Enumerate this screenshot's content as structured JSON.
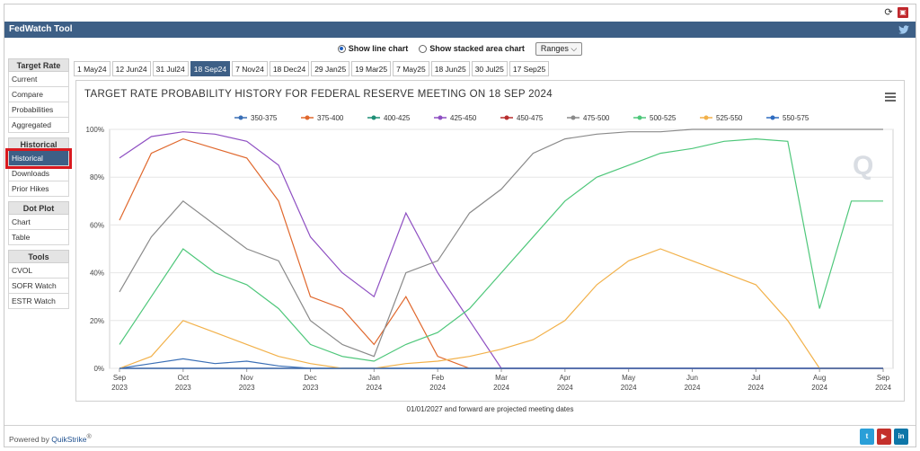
{
  "header": {
    "title": "FedWatch Tool"
  },
  "options": {
    "line_chart": "Show line chart",
    "stacked_chart": "Show stacked area chart",
    "ranges": "Ranges"
  },
  "sidebar": {
    "sections": [
      {
        "title": "Target Rate",
        "items": [
          "Current",
          "Compare",
          "Probabilities",
          "Aggregated"
        ]
      },
      {
        "title": "Historical",
        "items": [
          "Historical",
          "Downloads",
          "Prior Hikes"
        ]
      },
      {
        "title": "Dot Plot",
        "items": [
          "Chart",
          "Table"
        ]
      },
      {
        "title": "Tools",
        "items": [
          "CVOL",
          "SOFR Watch",
          "ESTR Watch"
        ]
      }
    ],
    "active_item": "Historical"
  },
  "tabs": [
    "1 May24",
    "12 Jun24",
    "31 Jul24",
    "18 Sep24",
    "7 Nov24",
    "18 Dec24",
    "29 Jan25",
    "19 Mar25",
    "7 May25",
    "18 Jun25",
    "30 Jul25",
    "17 Sep25"
  ],
  "active_tab": "18 Sep24",
  "footnote": "01/01/2027 and forward are projected meeting dates",
  "footer": {
    "powered_prefix": "Powered by ",
    "powered_brand": "QuikStrike",
    "reg": "®"
  },
  "colors": {
    "header": "#3d5f86",
    "highlight": "#d9191f"
  },
  "chart_data": {
    "type": "line",
    "title": "TARGET RATE PROBABILITY HISTORY FOR FEDERAL RESERVE MEETING ON 18 SEP 2024",
    "xlabel": "",
    "ylabel": "",
    "ylim": [
      0,
      100
    ],
    "yticks": [
      "0%",
      "20%",
      "40%",
      "60%",
      "80%",
      "100%"
    ],
    "grid": true,
    "legend_position": "top",
    "xticks": [
      [
        "Sep",
        "2023"
      ],
      [
        "Oct",
        "2023"
      ],
      [
        "Nov",
        "2023"
      ],
      [
        "Dec",
        "2023"
      ],
      [
        "Jan",
        "2024"
      ],
      [
        "Feb",
        "2024"
      ],
      [
        "Mar",
        "2024"
      ],
      [
        "Apr",
        "2024"
      ],
      [
        "May",
        "2024"
      ],
      [
        "Jun",
        "2024"
      ],
      [
        "Jul",
        "2024"
      ],
      [
        "Aug",
        "2024"
      ],
      [
        "Sep",
        "2024"
      ]
    ],
    "x_month_index": [
      0,
      0.5,
      1,
      1.5,
      2,
      2.5,
      3,
      3.5,
      4,
      4.5,
      5,
      5.5,
      6,
      6.5,
      7,
      7.5,
      8,
      8.5,
      9,
      9.5,
      10,
      10.5,
      11,
      11.5,
      12
    ],
    "series": [
      {
        "name": "350-375",
        "color": "#3a6fb6",
        "values": [
          0,
          2,
          4,
          2,
          3,
          1,
          0,
          0,
          0,
          0,
          0,
          0,
          0,
          0,
          0,
          0,
          0,
          0,
          0,
          0,
          0,
          0,
          0,
          0,
          0
        ]
      },
      {
        "name": "375-400",
        "color": "#e0682d",
        "values": [
          62,
          90,
          96,
          92,
          88,
          70,
          30,
          25,
          10,
          30,
          5,
          0,
          0,
          0,
          0,
          0,
          0,
          0,
          0,
          0,
          0,
          0,
          0,
          0,
          0
        ]
      },
      {
        "name": "400-425",
        "color": "#1f8f76",
        "values": [
          0,
          0,
          0,
          0,
          0,
          0,
          0,
          0,
          0,
          0,
          0,
          0,
          0,
          0,
          0,
          0,
          0,
          0,
          0,
          0,
          0,
          0,
          0,
          0,
          0
        ]
      },
      {
        "name": "425-450",
        "color": "#8e4fc2",
        "values": [
          88,
          97,
          99,
          98,
          95,
          85,
          55,
          40,
          30,
          65,
          40,
          20,
          0,
          0,
          0,
          0,
          0,
          0,
          0,
          0,
          0,
          0,
          0,
          0,
          0
        ]
      },
      {
        "name": "450-475",
        "color": "#b82e2e",
        "values": [
          0,
          0,
          0,
          0,
          0,
          0,
          0,
          0,
          0,
          0,
          0,
          0,
          0,
          0,
          0,
          0,
          0,
          0,
          0,
          0,
          0,
          0,
          0,
          0,
          0
        ]
      },
      {
        "name": "475-500",
        "color": "#8a8a8a",
        "values": [
          32,
          55,
          70,
          60,
          50,
          45,
          20,
          10,
          5,
          40,
          45,
          65,
          75,
          90,
          96,
          98,
          99,
          99,
          100,
          100,
          100,
          100,
          100,
          100,
          100
        ]
      },
      {
        "name": "500-525",
        "color": "#4ec77a",
        "values": [
          10,
          30,
          50,
          40,
          35,
          25,
          10,
          5,
          3,
          10,
          15,
          25,
          40,
          55,
          70,
          80,
          85,
          90,
          92,
          95,
          96,
          95,
          25,
          70,
          70
        ]
      },
      {
        "name": "525-550",
        "color": "#f2b14a",
        "values": [
          0,
          5,
          20,
          15,
          10,
          5,
          2,
          0,
          0,
          2,
          3,
          5,
          8,
          12,
          20,
          35,
          45,
          50,
          45,
          40,
          35,
          20,
          0,
          0,
          0
        ]
      },
      {
        "name": "550-575",
        "color": "#2f6cc0",
        "values": [
          0,
          0,
          0,
          0,
          0,
          0,
          0,
          0,
          0,
          0,
          0,
          0,
          0,
          0,
          0,
          0,
          0,
          0,
          0,
          0,
          0,
          0,
          0,
          0,
          0
        ]
      }
    ]
  }
}
